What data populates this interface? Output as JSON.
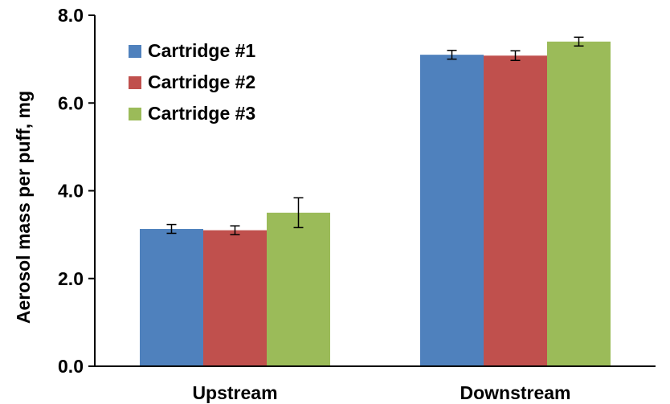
{
  "chart_data": {
    "type": "bar",
    "title": "",
    "xlabel": "",
    "ylabel": "Aerosol mass per puff, mg",
    "ylim": [
      0,
      8
    ],
    "yticks": [
      "0.0",
      "2.0",
      "4.0",
      "6.0",
      "8.0"
    ],
    "grid": false,
    "legend_position": "top-left",
    "categories": [
      "Upstream",
      "Downstream"
    ],
    "series": [
      {
        "name": "Cartridge #1",
        "color": "#4F81BD",
        "values": [
          3.13,
          7.1
        ],
        "errors": [
          0.1,
          0.1
        ]
      },
      {
        "name": "Cartridge #2",
        "color": "#C0504D",
        "values": [
          3.1,
          7.08
        ],
        "errors": [
          0.1,
          0.11
        ]
      },
      {
        "name": "Cartridge #3",
        "color": "#9BBB59",
        "values": [
          3.5,
          7.4
        ],
        "errors": [
          0.34,
          0.1
        ]
      }
    ]
  }
}
